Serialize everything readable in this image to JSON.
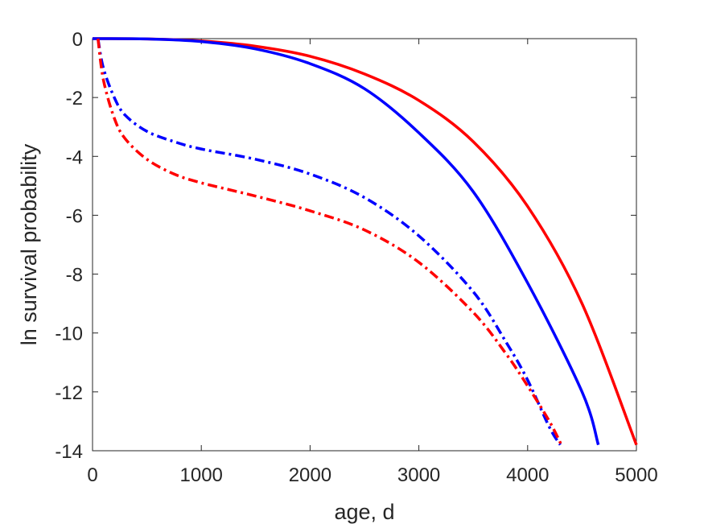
{
  "chart_data": {
    "type": "line",
    "title": "",
    "xlabel": "age, d",
    "ylabel": "ln survival probability",
    "xlim": [
      0,
      5000
    ],
    "ylim": [
      -14,
      0
    ],
    "xticks": [
      0,
      1000,
      2000,
      3000,
      4000,
      5000
    ],
    "yticks": [
      0,
      -2,
      -4,
      -6,
      -8,
      -10,
      -12,
      -14
    ],
    "xtick_labels": [
      "0",
      "1000",
      "2000",
      "3000",
      "4000",
      "5000"
    ],
    "ytick_labels": [
      "0",
      "-2",
      "-4",
      "-6",
      "-8",
      "-10",
      "-12",
      "-14"
    ],
    "grid": false,
    "legend": "none",
    "series": [
      {
        "color": "#ff0000",
        "style": "solid",
        "x": [
          0,
          500,
          1000,
          1500,
          2000,
          2500,
          3000,
          3500,
          4000,
          4500,
          5000
        ],
        "y": [
          0,
          -0.01,
          -0.08,
          -0.26,
          -0.6,
          -1.2,
          -2.1,
          -3.5,
          -5.7,
          -9.0,
          -13.8
        ]
      },
      {
        "color": "#0000ff",
        "style": "solid",
        "x": [
          0,
          500,
          1000,
          1500,
          2000,
          2500,
          3000,
          3500,
          4000,
          4500,
          4650
        ],
        "y": [
          0,
          -0.01,
          -0.1,
          -0.35,
          -0.85,
          -1.7,
          -3.2,
          -5.2,
          -8.3,
          -12.0,
          -13.8
        ]
      },
      {
        "color": "#0000ff",
        "style": "dashdot",
        "x": [
          50,
          100,
          200,
          300,
          500,
          750,
          1000,
          1500,
          2000,
          2500,
          3000,
          3500,
          3800,
          4000,
          4200,
          4300
        ],
        "y": [
          0,
          -1.0,
          -2.0,
          -2.6,
          -3.15,
          -3.5,
          -3.75,
          -4.1,
          -4.6,
          -5.4,
          -6.7,
          -8.6,
          -10.3,
          -11.6,
          -13.2,
          -13.8
        ]
      },
      {
        "color": "#ff0000",
        "style": "dashdot",
        "x": [
          50,
          100,
          200,
          300,
          500,
          750,
          1000,
          1500,
          2000,
          2500,
          3000,
          3500,
          3800,
          4000,
          4200,
          4310
        ],
        "y": [
          0,
          -1.4,
          -2.7,
          -3.4,
          -4.1,
          -4.6,
          -4.9,
          -5.35,
          -5.85,
          -6.5,
          -7.6,
          -9.3,
          -10.7,
          -11.8,
          -13.0,
          -13.8
        ]
      }
    ]
  }
}
